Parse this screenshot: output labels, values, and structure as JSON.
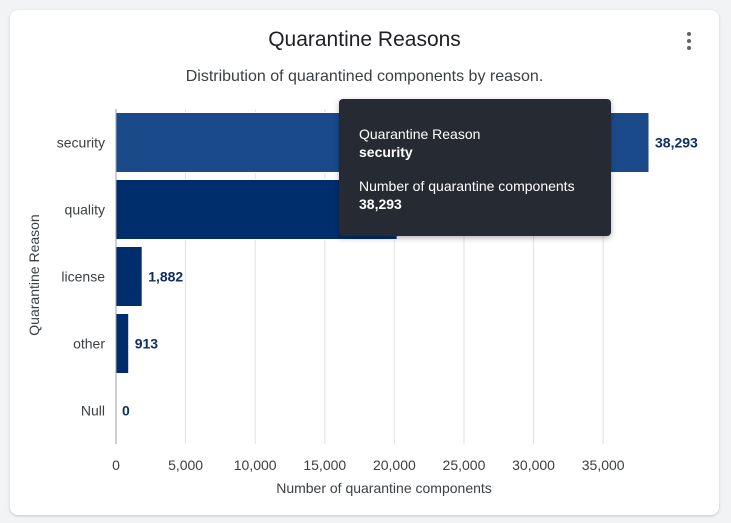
{
  "chart_data": {
    "type": "bar",
    "orientation": "horizontal",
    "title": "Quarantine Reasons",
    "subtitle": "Distribution of quarantined components by reason.",
    "xlabel": "Number of quarantine components",
    "ylabel": "Quarantine Reason",
    "categories": [
      "security",
      "quality",
      "license",
      "other",
      "Null"
    ],
    "values": [
      38293,
      20200,
      1882,
      913,
      0
    ],
    "data_labels": [
      "38,293",
      "",
      "1,882",
      "913",
      "0"
    ],
    "xlim": [
      0,
      38293
    ],
    "xticks": [
      0,
      5000,
      10000,
      15000,
      20000,
      25000,
      30000,
      35000
    ],
    "xtick_labels": [
      "0",
      "5,000",
      "10,000",
      "15,000",
      "20,000",
      "25,000",
      "30,000",
      "35,000"
    ],
    "grid": "vertical",
    "colors": {
      "bar": "#002d6b",
      "bar_highlight": "#1a4a8a",
      "label": "#0d2f63",
      "grid": "#e0e0e0"
    }
  },
  "tooltip": {
    "reason_label": "Quarantine Reason",
    "reason_value": "security",
    "count_label": "Number of quarantine components",
    "count_value": "38,293"
  },
  "menu": {
    "icon": "more-vert-icon"
  }
}
